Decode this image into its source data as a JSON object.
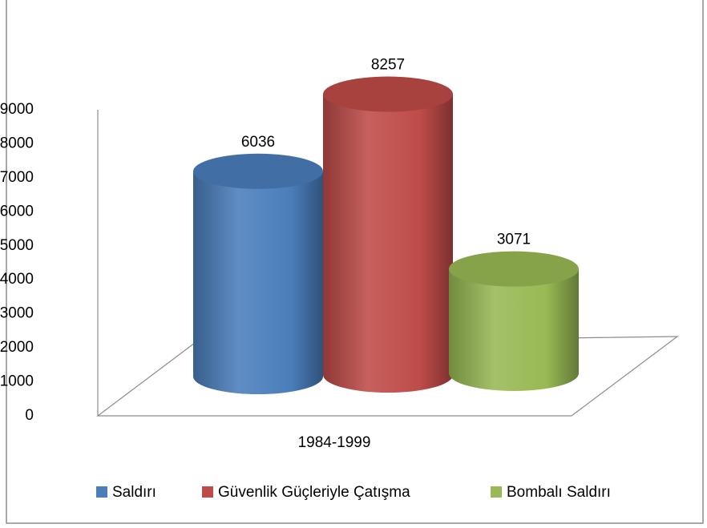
{
  "chart_data": {
    "type": "bar",
    "categories": [
      "1984-1999"
    ],
    "series": [
      {
        "name": "Saldırı",
        "color": "#4a7ebb",
        "values": [
          6036
        ]
      },
      {
        "name": "Güvenlik Güçleriyle Çatışma",
        "color": "#be4b48",
        "values": [
          8257
        ]
      },
      {
        "name": "Bombalı Saldırı",
        "color": "#98b954",
        "values": [
          3071
        ]
      }
    ],
    "ylim": [
      0,
      9000
    ],
    "yticks": [
      0,
      1000,
      2000,
      3000,
      4000,
      5000,
      6000,
      7000,
      8000,
      9000
    ],
    "legend": "bottom"
  }
}
